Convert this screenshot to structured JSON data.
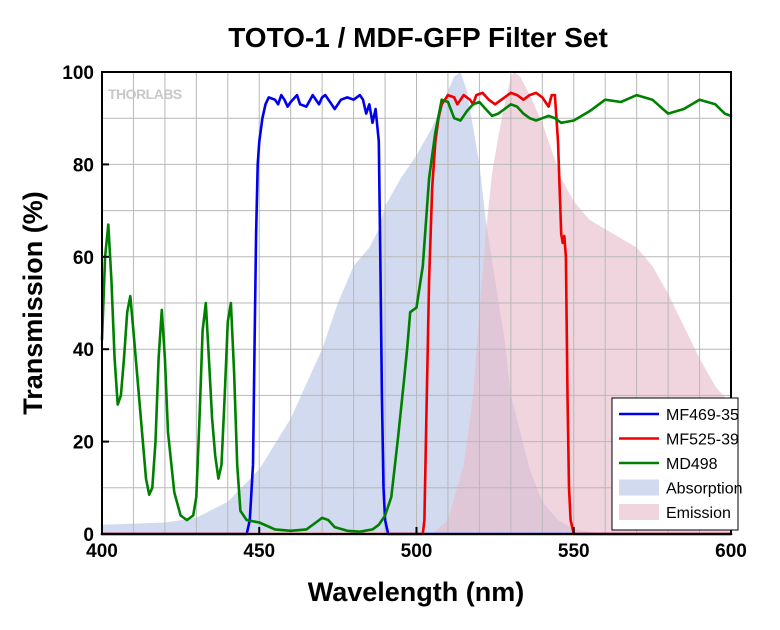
{
  "chart_data": {
    "type": "line",
    "title": "TOTO-1 / MDF-GFP Filter Set",
    "xlabel": "Wavelength (nm)",
    "ylabel": "Transmission (%)",
    "xlim": [
      400,
      600
    ],
    "ylim": [
      0,
      100
    ],
    "xticks": [
      400,
      450,
      500,
      550,
      600
    ],
    "yticks": [
      0,
      20,
      40,
      60,
      80,
      100
    ],
    "grid": true,
    "legend_position": "bottom-right",
    "logo": "THORLABS",
    "series": [
      {
        "name": "MF469-35",
        "kind": "line",
        "color": "#0000ee",
        "points": [
          [
            400,
            0
          ],
          [
            446,
            0
          ],
          [
            447,
            3
          ],
          [
            448,
            15
          ],
          [
            448.5,
            40
          ],
          [
            449,
            65
          ],
          [
            449.5,
            80
          ],
          [
            450,
            85
          ],
          [
            451,
            90
          ],
          [
            452,
            93
          ],
          [
            453,
            94.5
          ],
          [
            455,
            94
          ],
          [
            456,
            93
          ],
          [
            457,
            95
          ],
          [
            458,
            94
          ],
          [
            459,
            92.5
          ],
          [
            460,
            93.5
          ],
          [
            462,
            95
          ],
          [
            463,
            93
          ],
          [
            465,
            92.5
          ],
          [
            467,
            95
          ],
          [
            468,
            94
          ],
          [
            469,
            93
          ],
          [
            470,
            94.5
          ],
          [
            471,
            95
          ],
          [
            473,
            93
          ],
          [
            474,
            92
          ],
          [
            476,
            94
          ],
          [
            478,
            94.5
          ],
          [
            480,
            94
          ],
          [
            482,
            95
          ],
          [
            483,
            94
          ],
          [
            484,
            91
          ],
          [
            485,
            93
          ],
          [
            486,
            89
          ],
          [
            487,
            92
          ],
          [
            488,
            85
          ],
          [
            488.5,
            60
          ],
          [
            489,
            30
          ],
          [
            489.5,
            10
          ],
          [
            490,
            3
          ],
          [
            491,
            0
          ],
          [
            600,
            0
          ]
        ]
      },
      {
        "name": "MF525-39",
        "kind": "line",
        "color": "#ee0000",
        "points": [
          [
            400,
            0
          ],
          [
            502,
            0
          ],
          [
            502.5,
            3
          ],
          [
            503,
            20
          ],
          [
            504,
            55
          ],
          [
            505,
            75
          ],
          [
            506,
            85
          ],
          [
            507,
            90
          ],
          [
            508,
            93
          ],
          [
            510,
            95
          ],
          [
            512,
            94.5
          ],
          [
            513,
            93
          ],
          [
            515,
            95
          ],
          [
            517,
            94
          ],
          [
            518,
            93
          ],
          [
            519,
            95
          ],
          [
            521,
            95.5
          ],
          [
            523,
            94
          ],
          [
            525,
            93
          ],
          [
            527,
            94
          ],
          [
            530,
            95.5
          ],
          [
            532,
            95
          ],
          [
            534,
            94
          ],
          [
            536,
            95
          ],
          [
            538,
            95.5
          ],
          [
            540,
            94.5
          ],
          [
            542,
            92.5
          ],
          [
            543,
            95
          ],
          [
            544,
            95
          ],
          [
            545,
            85
          ],
          [
            545.5,
            75
          ],
          [
            546,
            65
          ],
          [
            546.5,
            63
          ],
          [
            547,
            64.5
          ],
          [
            547.5,
            60
          ],
          [
            548,
            30
          ],
          [
            548.5,
            10
          ],
          [
            549,
            3
          ],
          [
            550,
            0
          ],
          [
            600,
            0
          ]
        ]
      },
      {
        "name": "MD498",
        "kind": "line",
        "color": "#008000",
        "points": [
          [
            400,
            42
          ],
          [
            401,
            60
          ],
          [
            402,
            67
          ],
          [
            403,
            55
          ],
          [
            404,
            38
          ],
          [
            405,
            28
          ],
          [
            406,
            30
          ],
          [
            407,
            38
          ],
          [
            408,
            48
          ],
          [
            409,
            51.5
          ],
          [
            410,
            44
          ],
          [
            412,
            28
          ],
          [
            414,
            12
          ],
          [
            415,
            8.5
          ],
          [
            416,
            10
          ],
          [
            417,
            20
          ],
          [
            418,
            38
          ],
          [
            419,
            48.5
          ],
          [
            420,
            38
          ],
          [
            421,
            22
          ],
          [
            423,
            9
          ],
          [
            425,
            4
          ],
          [
            427,
            3
          ],
          [
            429,
            4
          ],
          [
            430,
            8
          ],
          [
            431,
            25
          ],
          [
            432,
            44
          ],
          [
            433,
            50
          ],
          [
            434,
            38
          ],
          [
            435,
            25
          ],
          [
            436,
            17
          ],
          [
            437,
            12
          ],
          [
            438,
            15
          ],
          [
            439,
            30
          ],
          [
            440,
            46
          ],
          [
            441,
            50
          ],
          [
            442,
            35
          ],
          [
            443,
            15
          ],
          [
            444,
            5
          ],
          [
            446,
            3
          ],
          [
            450,
            2.5
          ],
          [
            455,
            1
          ],
          [
            460,
            0.7
          ],
          [
            465,
            1
          ],
          [
            468,
            2.5
          ],
          [
            470,
            3.5
          ],
          [
            472,
            3
          ],
          [
            474,
            1.5
          ],
          [
            478,
            0.7
          ],
          [
            482,
            0.5
          ],
          [
            486,
            1
          ],
          [
            488,
            2
          ],
          [
            490,
            4
          ],
          [
            492,
            8
          ],
          [
            494,
            20
          ],
          [
            496,
            33
          ],
          [
            497,
            40
          ],
          [
            498,
            48
          ],
          [
            500,
            49
          ],
          [
            502,
            58
          ],
          [
            504,
            77
          ],
          [
            505,
            82
          ],
          [
            506,
            87
          ],
          [
            508,
            94
          ],
          [
            510,
            93.5
          ],
          [
            512,
            90
          ],
          [
            514,
            89.5
          ],
          [
            516,
            91.5
          ],
          [
            518,
            93
          ],
          [
            520,
            93.5
          ],
          [
            522,
            92
          ],
          [
            524,
            90.5
          ],
          [
            526,
            91
          ],
          [
            528,
            92
          ],
          [
            530,
            93
          ],
          [
            532,
            92.5
          ],
          [
            534,
            91
          ],
          [
            536,
            90
          ],
          [
            538,
            89.5
          ],
          [
            540,
            90
          ],
          [
            542,
            90.5
          ],
          [
            544,
            90
          ],
          [
            546,
            89
          ],
          [
            550,
            89.5
          ],
          [
            555,
            91.5
          ],
          [
            560,
            94
          ],
          [
            565,
            93.5
          ],
          [
            570,
            95
          ],
          [
            575,
            94
          ],
          [
            580,
            91
          ],
          [
            585,
            92
          ],
          [
            590,
            94
          ],
          [
            595,
            93
          ],
          [
            598,
            91
          ],
          [
            600,
            90.5
          ]
        ]
      },
      {
        "name": "Absorption",
        "kind": "area",
        "color": "#b4c3e5",
        "points": [
          [
            400,
            2
          ],
          [
            420,
            2.5
          ],
          [
            430,
            3.5
          ],
          [
            440,
            7
          ],
          [
            450,
            14
          ],
          [
            460,
            25
          ],
          [
            470,
            40
          ],
          [
            475,
            50
          ],
          [
            480,
            58
          ],
          [
            485,
            62
          ],
          [
            488,
            66
          ],
          [
            490,
            71
          ],
          [
            495,
            77
          ],
          [
            500,
            82
          ],
          [
            505,
            88
          ],
          [
            510,
            96
          ],
          [
            512,
            99
          ],
          [
            514,
            100
          ],
          [
            516,
            96
          ],
          [
            518,
            88
          ],
          [
            520,
            80
          ],
          [
            522,
            68
          ],
          [
            525,
            55
          ],
          [
            528,
            42
          ],
          [
            530,
            30
          ],
          [
            533,
            22
          ],
          [
            536,
            14
          ],
          [
            540,
            7
          ],
          [
            545,
            3
          ],
          [
            550,
            1
          ],
          [
            560,
            0
          ],
          [
            600,
            0
          ]
        ]
      },
      {
        "name": "Emission",
        "kind": "area",
        "color": "#e7bbc9",
        "points": [
          [
            400,
            0
          ],
          [
            505,
            0
          ],
          [
            510,
            3
          ],
          [
            515,
            15
          ],
          [
            518,
            30
          ],
          [
            520,
            48
          ],
          [
            522,
            65
          ],
          [
            524,
            78
          ],
          [
            526,
            86
          ],
          [
            528,
            93
          ],
          [
            530,
            99
          ],
          [
            531,
            100
          ],
          [
            533,
            99
          ],
          [
            536,
            95
          ],
          [
            540,
            89
          ],
          [
            543,
            83
          ],
          [
            546,
            77
          ],
          [
            550,
            72
          ],
          [
            555,
            68
          ],
          [
            560,
            66
          ],
          [
            565,
            64
          ],
          [
            570,
            62
          ],
          [
            575,
            58
          ],
          [
            580,
            52
          ],
          [
            585,
            45
          ],
          [
            590,
            38
          ],
          [
            595,
            32
          ],
          [
            600,
            28
          ]
        ]
      }
    ]
  }
}
